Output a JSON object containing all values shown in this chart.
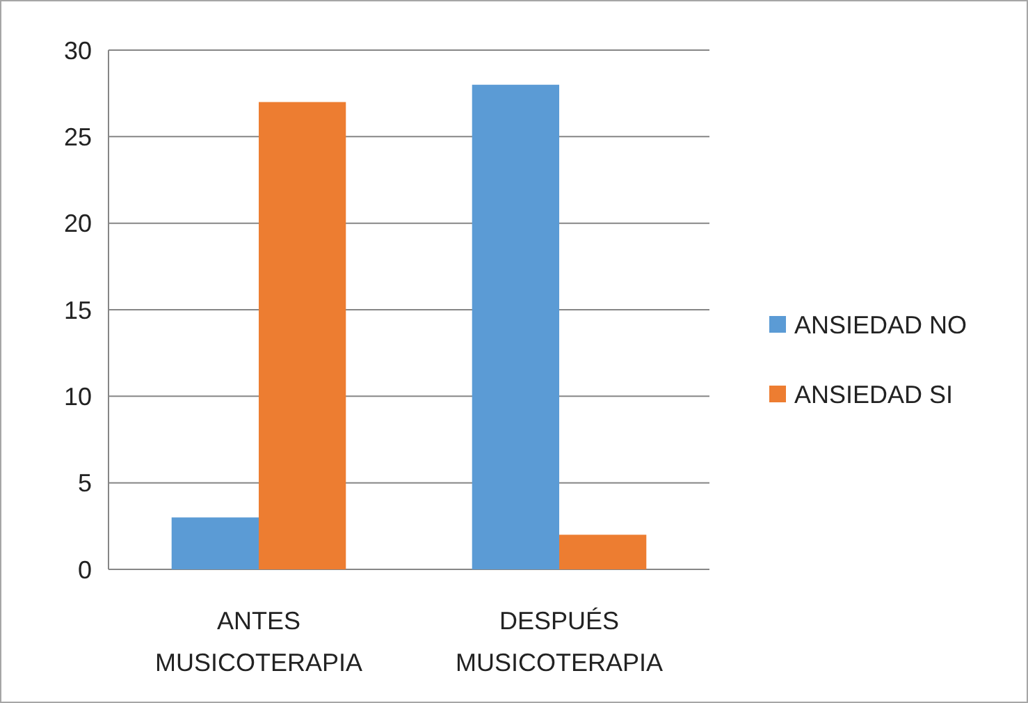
{
  "chart_data": {
    "type": "bar",
    "categories": [
      "ANTES MUSICOTERAPIA",
      "DESPUÉS MUSICOTERAPIA"
    ],
    "series": [
      {
        "name": "ANSIEDAD NO",
        "color": "#5b9bd5",
        "values": [
          3,
          28
        ]
      },
      {
        "name": "ANSIEDAD SI",
        "color": "#ed7d31",
        "values": [
          27,
          2
        ]
      }
    ],
    "ylim": [
      0,
      30
    ],
    "yticks": [
      0,
      5,
      10,
      15,
      20,
      25,
      30
    ],
    "grid": "y",
    "legend": "right"
  }
}
